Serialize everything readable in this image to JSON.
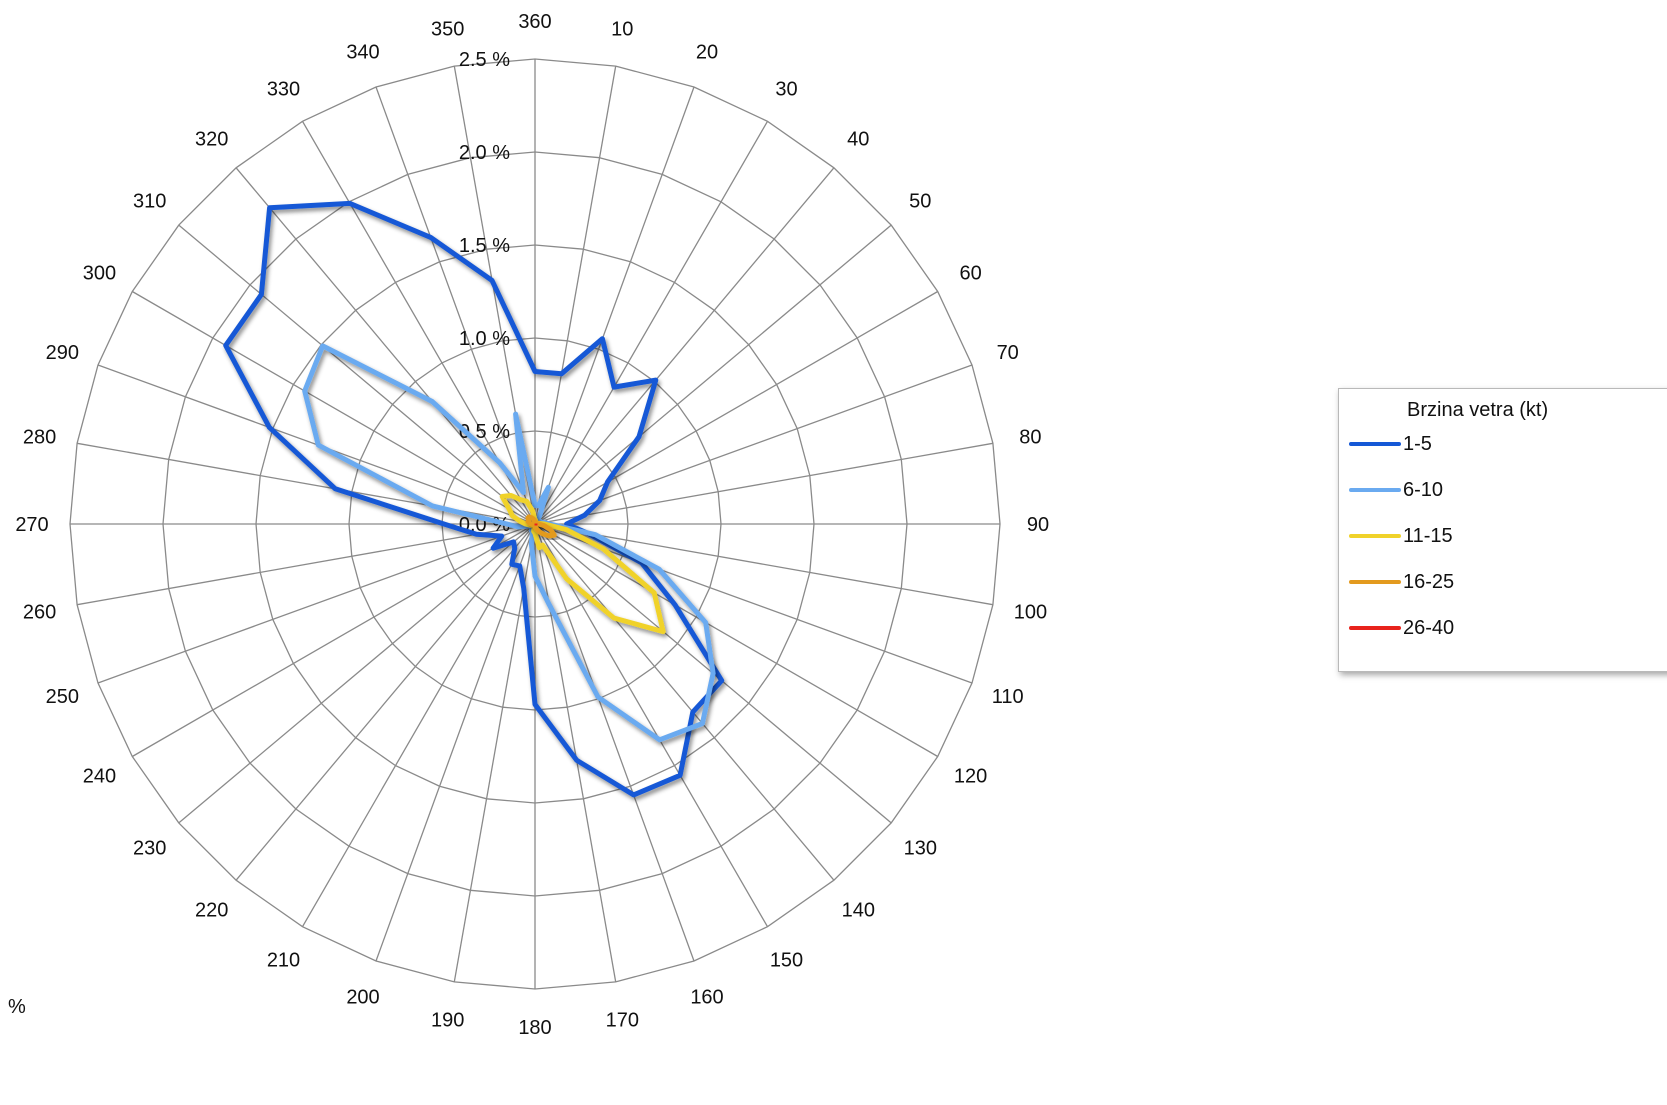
{
  "chart_data": {
    "type": "radar",
    "angles": [
      10,
      20,
      30,
      40,
      50,
      60,
      70,
      80,
      90,
      100,
      110,
      120,
      130,
      140,
      150,
      160,
      170,
      180,
      190,
      200,
      210,
      220,
      230,
      240,
      250,
      260,
      270,
      280,
      290,
      300,
      310,
      320,
      330,
      340,
      350,
      360
    ],
    "rmax": 2.5,
    "rings": [
      0.0,
      0.5,
      1.0,
      1.5,
      2.0,
      2.5
    ],
    "ring_labels": [
      "0.0 %",
      "0.5 %",
      "1.0 %",
      "1.5 %",
      "2.0 %",
      "2.5 %"
    ],
    "unit_label": "%",
    "legend": {
      "title": "Brzina vetra (kt)",
      "placement": "right"
    },
    "series": [
      {
        "name": "1-5",
        "color": "#1558d6",
        "values": [
          0.82,
          1.06,
          0.85,
          1.01,
          0.73,
          0.45,
          0.37,
          0.27,
          0.17,
          0.29,
          0.61,
          0.87,
          1.31,
          1.32,
          1.56,
          1.55,
          1.29,
          0.97,
          0.35,
          0.24,
          0.25,
          0.17,
          0.15,
          0.26,
          0.19,
          0.32,
          0.49,
          1.09,
          1.52,
          1.92,
          1.92,
          2.22,
          1.99,
          1.64,
          1.33,
          0.82
        ]
      },
      {
        "name": "6-10",
        "color": "#6aaaf0",
        "values": [
          0.1,
          0.21,
          0.05,
          0.01,
          0.02,
          0.03,
          0.03,
          0.05,
          0.08,
          0.33,
          0.71,
          1.06,
          1.25,
          1.4,
          1.34,
          0.99,
          0.44,
          0.28,
          0.11,
          0.04,
          0.04,
          0.01,
          0.01,
          0.02,
          0.03,
          0.09,
          0.15,
          0.56,
          1.24,
          1.43,
          1.49,
          0.86,
          0.38,
          0.18,
          0.6,
          0.1
        ]
      },
      {
        "name": "11-15",
        "color": "#f0d22a",
        "values": [
          0.02,
          0.01,
          0.01,
          0.01,
          0.01,
          0.01,
          0.01,
          0.02,
          0.05,
          0.17,
          0.39,
          0.74,
          0.9,
          0.66,
          0.34,
          0.12,
          0.13,
          0.05,
          0.04,
          0.01,
          0.01,
          0.01,
          0.01,
          0.01,
          0.02,
          0.03,
          0.05,
          0.08,
          0.13,
          0.16,
          0.23,
          0.2,
          0.15,
          0.13,
          0.07,
          0.02
        ]
      },
      {
        "name": "16-25",
        "color": "#e39a1e",
        "values": [
          0.01,
          0.0,
          0.0,
          0.0,
          0.0,
          0.0,
          0.0,
          0.01,
          0.02,
          0.05,
          0.09,
          0.12,
          0.1,
          0.07,
          0.05,
          0.03,
          0.02,
          0.01,
          0.0,
          0.0,
          0.0,
          0.0,
          0.0,
          0.0,
          0.01,
          0.01,
          0.02,
          0.03,
          0.04,
          0.04,
          0.05,
          0.05,
          0.04,
          0.03,
          0.02,
          0.01
        ]
      },
      {
        "name": "26-40",
        "color": "#e8231c",
        "values": [
          0.0,
          0.0,
          0.0,
          0.0,
          0.0,
          0.0,
          0.0,
          0.0,
          0.0,
          0.01,
          0.01,
          0.01,
          0.01,
          0.0,
          0.0,
          0.0,
          0.0,
          0.0,
          0.0,
          0.0,
          0.0,
          0.0,
          0.0,
          0.0,
          0.0,
          0.0,
          0.0,
          0.0,
          0.0,
          0.0,
          0.0,
          0.0,
          0.0,
          0.0,
          0.0,
          0.0
        ]
      }
    ]
  }
}
